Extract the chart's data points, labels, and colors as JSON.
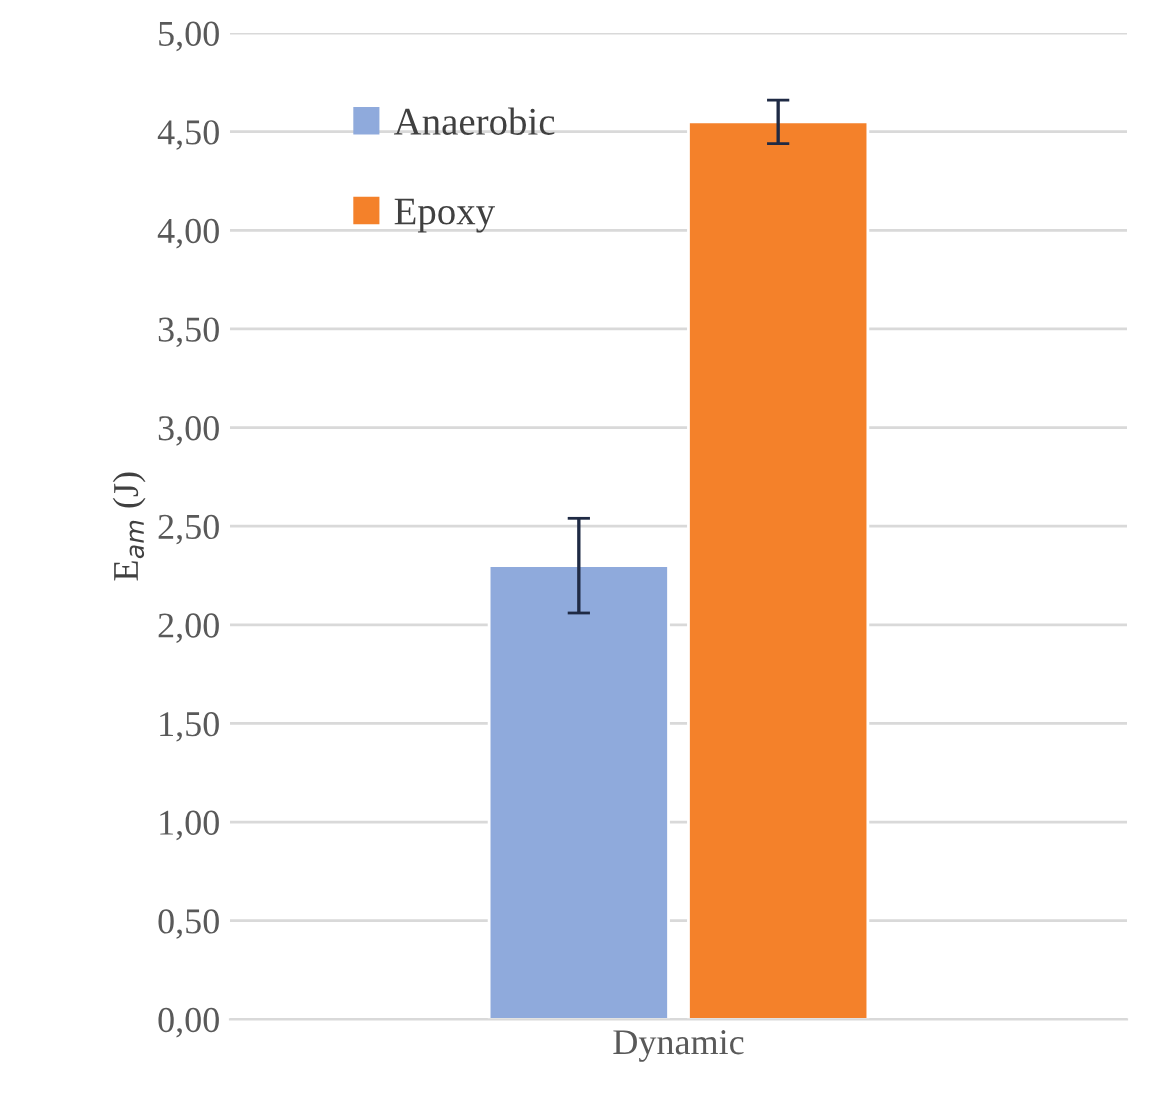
{
  "chart_data": {
    "type": "bar",
    "ylabel": "E$_{am}$ (J)",
    "categories": [
      "Dynamic"
    ],
    "series": [
      {
        "name": "Anaerobic",
        "color": "#8faadc",
        "values": [
          2.3
        ],
        "errors": [
          0.24
        ]
      },
      {
        "name": "Epoxy",
        "color": "#f4812a",
        "values": [
          4.55
        ],
        "errors": [
          0.11
        ]
      }
    ],
    "ylim": [
      0,
      5
    ],
    "yticks": [
      {
        "value": 0,
        "label": "0,00"
      },
      {
        "value": 0.5,
        "label": "0,50"
      },
      {
        "value": 1,
        "label": "1,00"
      },
      {
        "value": 1.5,
        "label": "1,50"
      },
      {
        "value": 2,
        "label": "2,00"
      },
      {
        "value": 2.5,
        "label": "2,50"
      },
      {
        "value": 3,
        "label": "3,00"
      },
      {
        "value": 3.5,
        "label": "3,50"
      },
      {
        "value": 4,
        "label": "4,00"
      },
      {
        "value": 4.5,
        "label": "4,50"
      },
      {
        "value": 5,
        "label": "5,00"
      }
    ],
    "grid": "y",
    "legend": "top left"
  }
}
